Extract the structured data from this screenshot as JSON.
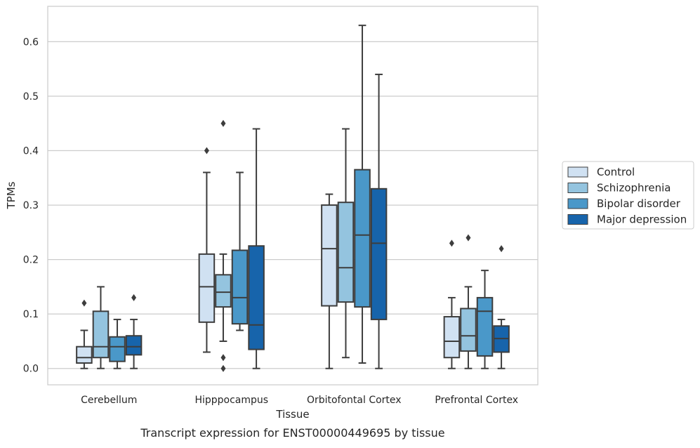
{
  "caption": "Transcript expression for ENST00000449695 by tissue",
  "chart_data": {
    "type": "box",
    "xlabel": "Tissue",
    "ylabel": "TPMs",
    "ylim": [
      -0.03,
      0.665
    ],
    "yticks": [
      0.0,
      0.1,
      0.2,
      0.3,
      0.4,
      0.5,
      0.6
    ],
    "ytick_labels": [
      "0.0",
      "0.1",
      "0.2",
      "0.3",
      "0.4",
      "0.5",
      "0.6"
    ],
    "grid": "horizontal",
    "legend_position": "right",
    "categories": [
      "Cerebellum",
      "Hipppocampus",
      "Orbitofontal Cortex",
      "Prefrontal Cortex"
    ],
    "series": [
      {
        "name": "Control",
        "color": "#d0e1f2",
        "boxes": [
          {
            "whislo": 0.0,
            "q1": 0.01,
            "med": 0.02,
            "q3": 0.04,
            "whishi": 0.07,
            "fliers": [
              0.12
            ]
          },
          {
            "whislo": 0.03,
            "q1": 0.085,
            "med": 0.15,
            "q3": 0.21,
            "whishi": 0.36,
            "fliers": [
              0.4
            ]
          },
          {
            "whislo": 0.0,
            "q1": 0.115,
            "med": 0.22,
            "q3": 0.3,
            "whishi": 0.32,
            "fliers": []
          },
          {
            "whislo": 0.0,
            "q1": 0.02,
            "med": 0.05,
            "q3": 0.095,
            "whishi": 0.13,
            "fliers": [
              0.23
            ]
          }
        ]
      },
      {
        "name": "Schizophrenia",
        "color": "#94c4df",
        "boxes": [
          {
            "whislo": 0.0,
            "q1": 0.02,
            "med": 0.04,
            "q3": 0.105,
            "whishi": 0.15,
            "fliers": []
          },
          {
            "whislo": 0.05,
            "q1": 0.113,
            "med": 0.14,
            "q3": 0.172,
            "whishi": 0.21,
            "fliers": [
              0.45,
              0.02,
              0.0
            ]
          },
          {
            "whislo": 0.02,
            "q1": 0.122,
            "med": 0.185,
            "q3": 0.305,
            "whishi": 0.44,
            "fliers": []
          },
          {
            "whislo": 0.0,
            "q1": 0.032,
            "med": 0.06,
            "q3": 0.11,
            "whishi": 0.15,
            "fliers": [
              0.24
            ]
          }
        ]
      },
      {
        "name": "Bipolar disorder",
        "color": "#4a98c9",
        "boxes": [
          {
            "whislo": 0.0,
            "q1": 0.013,
            "med": 0.04,
            "q3": 0.058,
            "whishi": 0.09,
            "fliers": []
          },
          {
            "whislo": 0.07,
            "q1": 0.082,
            "med": 0.13,
            "q3": 0.217,
            "whishi": 0.36,
            "fliers": []
          },
          {
            "whislo": 0.01,
            "q1": 0.113,
            "med": 0.245,
            "q3": 0.365,
            "whishi": 0.63,
            "fliers": []
          },
          {
            "whislo": 0.0,
            "q1": 0.023,
            "med": 0.105,
            "q3": 0.13,
            "whishi": 0.18,
            "fliers": []
          }
        ]
      },
      {
        "name": "Major depression",
        "color": "#1764ab",
        "boxes": [
          {
            "whislo": 0.0,
            "q1": 0.025,
            "med": 0.04,
            "q3": 0.06,
            "whishi": 0.09,
            "fliers": [
              0.13
            ]
          },
          {
            "whislo": 0.0,
            "q1": 0.035,
            "med": 0.08,
            "q3": 0.225,
            "whishi": 0.44,
            "fliers": []
          },
          {
            "whislo": 0.0,
            "q1": 0.09,
            "med": 0.23,
            "q3": 0.33,
            "whishi": 0.54,
            "fliers": []
          },
          {
            "whislo": 0.0,
            "q1": 0.03,
            "med": 0.055,
            "q3": 0.078,
            "whishi": 0.09,
            "fliers": [
              0.22
            ]
          }
        ]
      }
    ]
  }
}
